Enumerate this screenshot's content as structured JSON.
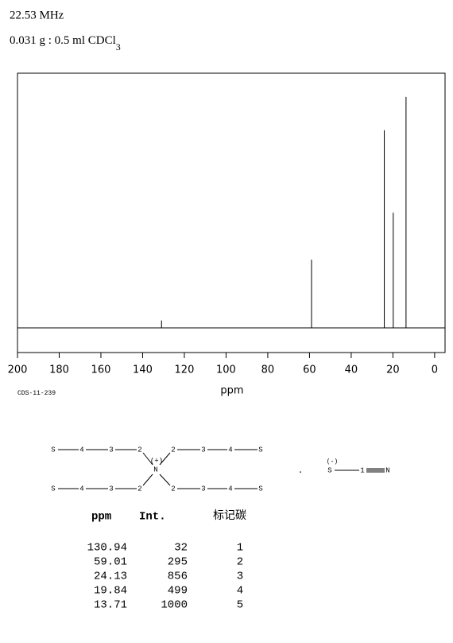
{
  "header": {
    "frequency": "22.53 MHz",
    "sample": "0.031 g : 0.5 ml CDCl",
    "sample_subscript": "3"
  },
  "code": "CDS-11-239",
  "chart_data": {
    "type": "spectrum",
    "xlabel": "ppm",
    "x": [
      130.94,
      59.01,
      24.13,
      19.84,
      13.71
    ],
    "values": [
      32,
      295,
      856,
      499,
      1000
    ],
    "xlim": [
      200,
      -5
    ],
    "ylim": [
      -107,
      1103
    ],
    "xticks": [
      200,
      180,
      160,
      140,
      120,
      100,
      80,
      60,
      40,
      20,
      0
    ],
    "color": "#000000"
  },
  "structure": {
    "cation_atoms": [
      "S",
      "4",
      "3",
      "2",
      "2",
      "3",
      "4",
      "S",
      "S",
      "4",
      "3",
      "2",
      "2",
      "3",
      "4",
      "S"
    ],
    "nitrogen": "N",
    "charge_plus": "(+)",
    "separator": ".",
    "anion_atoms": [
      "S",
      "1",
      "N"
    ],
    "charge_minus": "(-)"
  },
  "table": {
    "headers": [
      "ppm",
      "Int.",
      "标记碳"
    ],
    "labels": [
      1,
      2,
      3,
      4,
      5
    ]
  }
}
